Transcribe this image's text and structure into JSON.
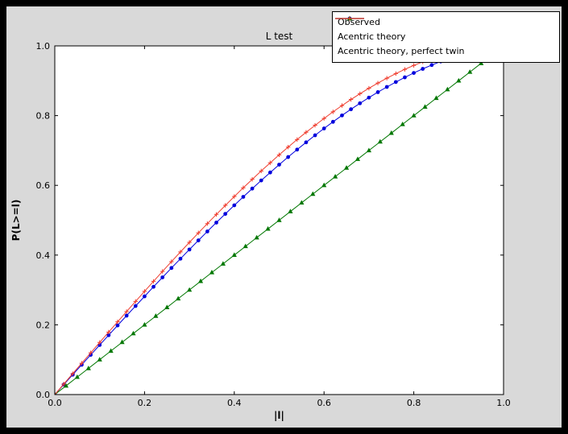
{
  "window": {
    "outer_background": "#000000",
    "figure_background": "#d9d9d9",
    "axes_background": "#ffffff"
  },
  "chart_data": {
    "type": "line",
    "title": "L test",
    "xlabel": "|l|",
    "ylabel": "P(L>=l)",
    "xlim": [
      0.0,
      1.0
    ],
    "ylim": [
      0.0,
      1.0
    ],
    "grid": false,
    "xticks": [
      0.0,
      0.2,
      0.4,
      0.6,
      0.8,
      1.0
    ],
    "yticks": [
      0.0,
      0.2,
      0.4,
      0.6,
      0.8,
      1.0
    ],
    "xtick_labels": [
      "0.0",
      "0.2",
      "0.4",
      "0.6",
      "0.8",
      "1.0"
    ],
    "ytick_labels": [
      "0.0",
      "0.2",
      "0.4",
      "0.6",
      "0.8",
      "1.0"
    ],
    "legend": {
      "position": "upper right"
    },
    "series": [
      {
        "name": "Observed",
        "color": "#0000dd",
        "marker": "circle",
        "x": [
          0,
          0.02,
          0.04,
          0.06,
          0.08,
          0.1,
          0.12,
          0.14,
          0.16,
          0.18,
          0.2,
          0.22,
          0.24,
          0.26,
          0.28,
          0.3,
          0.32,
          0.34,
          0.36,
          0.38,
          0.4,
          0.42,
          0.44,
          0.46,
          0.48,
          0.5,
          0.52,
          0.54,
          0.56,
          0.58,
          0.6,
          0.62,
          0.64,
          0.66,
          0.68,
          0.7,
          0.72,
          0.74,
          0.76,
          0.78,
          0.8,
          0.82,
          0.84,
          0.86
        ],
        "y": [
          0,
          0.0285,
          0.057,
          0.0854,
          0.1138,
          0.1421,
          0.1703,
          0.1983,
          0.2263,
          0.254,
          0.2816,
          0.309,
          0.3361,
          0.363,
          0.3897,
          0.416,
          0.4421,
          0.4678,
          0.4932,
          0.5182,
          0.5428,
          0.567,
          0.5908,
          0.6141,
          0.637,
          0.6594,
          0.6812,
          0.7026,
          0.7234,
          0.7436,
          0.7632,
          0.7822,
          0.8006,
          0.8183,
          0.8354,
          0.8517,
          0.8674,
          0.8823,
          0.8964,
          0.9098,
          0.9224,
          0.9342,
          0.9451,
          0.9553
        ]
      },
      {
        "name": "Acentric theory",
        "color": "#007700",
        "marker": "triangle",
        "x": [
          0,
          0.025,
          0.05,
          0.075,
          0.1,
          0.125,
          0.15,
          0.175,
          0.2,
          0.225,
          0.25,
          0.275,
          0.3,
          0.325,
          0.35,
          0.375,
          0.4,
          0.425,
          0.45,
          0.475,
          0.5,
          0.525,
          0.55,
          0.575,
          0.6,
          0.625,
          0.65,
          0.675,
          0.7,
          0.725,
          0.75,
          0.775,
          0.8,
          0.825,
          0.85,
          0.875,
          0.9,
          0.925,
          0.95,
          0.975,
          1
        ],
        "y": [
          0,
          0.025,
          0.05,
          0.075,
          0.1,
          0.125,
          0.15,
          0.175,
          0.2,
          0.225,
          0.25,
          0.275,
          0.3,
          0.325,
          0.35,
          0.375,
          0.4,
          0.425,
          0.45,
          0.475,
          0.5,
          0.525,
          0.55,
          0.575,
          0.6,
          0.625,
          0.65,
          0.675,
          0.7,
          0.725,
          0.75,
          0.775,
          0.8,
          0.825,
          0.85,
          0.875,
          0.9,
          0.925,
          0.95,
          0.975,
          1
        ]
      },
      {
        "name": "Acentric theory, perfect twin",
        "color": "#ef3b2c",
        "marker": "plus",
        "x": [
          0,
          0.02,
          0.04,
          0.06,
          0.08,
          0.1,
          0.12,
          0.14,
          0.16,
          0.18,
          0.2,
          0.22,
          0.24,
          0.26,
          0.28,
          0.3,
          0.32,
          0.34,
          0.36,
          0.38,
          0.4,
          0.42,
          0.44,
          0.46,
          0.48,
          0.5,
          0.52,
          0.54,
          0.56,
          0.58,
          0.6,
          0.62,
          0.64,
          0.66,
          0.68,
          0.7,
          0.72,
          0.74,
          0.76,
          0.78,
          0.8,
          0.82,
          0.84,
          0.86,
          0.88,
          0.9,
          0.92,
          0.94,
          0.96,
          0.98,
          1
        ],
        "y": [
          0,
          0.03,
          0.06,
          0.0899,
          0.1197,
          0.1495,
          0.1791,
          0.2086,
          0.238,
          0.2671,
          0.296,
          0.3247,
          0.3531,
          0.3812,
          0.409,
          0.4365,
          0.4636,
          0.4903,
          0.5167,
          0.5426,
          0.568,
          0.593,
          0.6174,
          0.6413,
          0.6647,
          0.6875,
          0.7097,
          0.7313,
          0.7522,
          0.7724,
          0.792,
          0.8108,
          0.8289,
          0.8463,
          0.8628,
          0.8785,
          0.8934,
          0.9074,
          0.9205,
          0.9327,
          0.944,
          0.9543,
          0.9636,
          0.972,
          0.9793,
          0.9855,
          0.9907,
          0.9947,
          0.9976,
          0.9994,
          1
        ]
      }
    ]
  }
}
